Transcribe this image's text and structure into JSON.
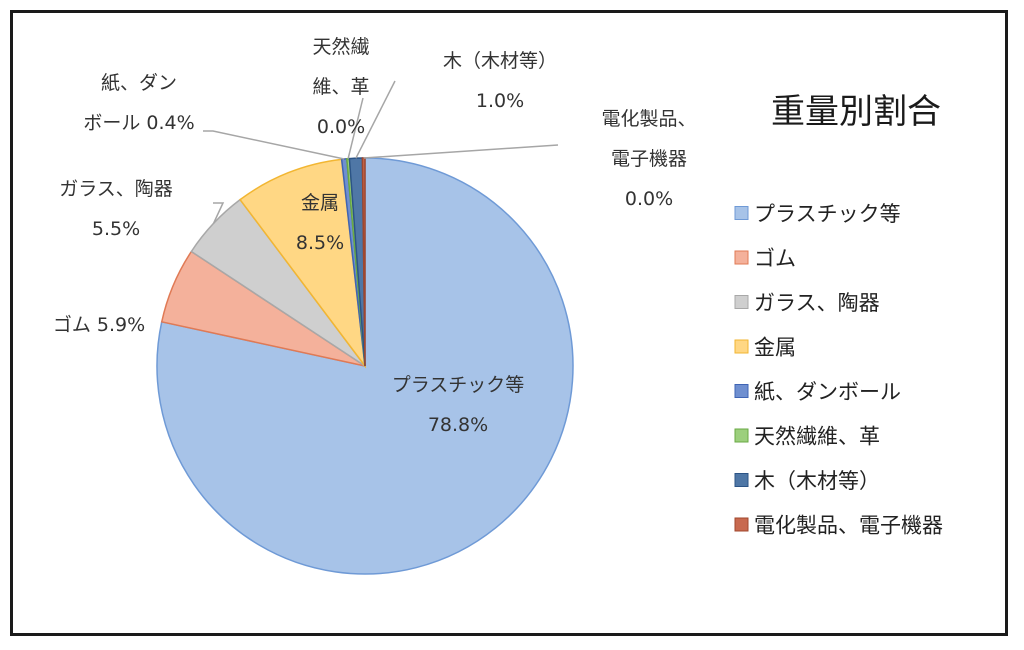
{
  "chart_data": {
    "type": "pie",
    "title": "重量別割合",
    "legend_position": "right",
    "slices": [
      {
        "label": "プラスチック等",
        "value": 78.8,
        "value_text": "78.8%",
        "color": "#a7c3e8",
        "stroke": "#6f9ad6",
        "label_lines": [
          "プラスチック等",
          "78.8%"
        ]
      },
      {
        "label": "ゴム",
        "value": 5.9,
        "value_text": "5.9%",
        "color": "#f4b19b",
        "stroke": "#e07a55",
        "label_lines": [
          "ゴム 5.9%"
        ]
      },
      {
        "label": "ガラス、陶器",
        "value": 5.5,
        "value_text": "5.5%",
        "color": "#cfcfcf",
        "stroke": "#a8a8a8",
        "label_lines": [
          "ガラス、陶器",
          "5.5%"
        ]
      },
      {
        "label": "金属",
        "value": 8.5,
        "value_text": "8.5%",
        "color": "#ffd784",
        "stroke": "#f2b632",
        "label_lines": [
          "金属",
          "8.5%"
        ]
      },
      {
        "label": "紙、ダンボール",
        "value": 0.4,
        "value_text": "0.4%",
        "color": "#6f8fd0",
        "stroke": "#3f64b4",
        "label_lines": [
          "紙、ダン",
          "ボール 0.4%"
        ]
      },
      {
        "label": "天然繊維、革",
        "value": 0.0,
        "value_text": "0.0%",
        "color": "#9ccf7d",
        "stroke": "#6aaa44",
        "label_lines": [
          "天然繊",
          "維、革",
          "0.0%"
        ]
      },
      {
        "label": "木（木材等）",
        "value": 1.0,
        "value_text": "1.0%",
        "color": "#4f77a6",
        "stroke": "#2c5486",
        "label_lines": [
          "木（木材等）",
          "1.0%"
        ]
      },
      {
        "label": "電化製品、電子機器",
        "value": 0.0,
        "value_text": "0.0%",
        "color": "#c8694f",
        "stroke": "#a0472e",
        "label_lines": [
          "電化製品、",
          "電子機器",
          "0.0%"
        ]
      }
    ]
  }
}
